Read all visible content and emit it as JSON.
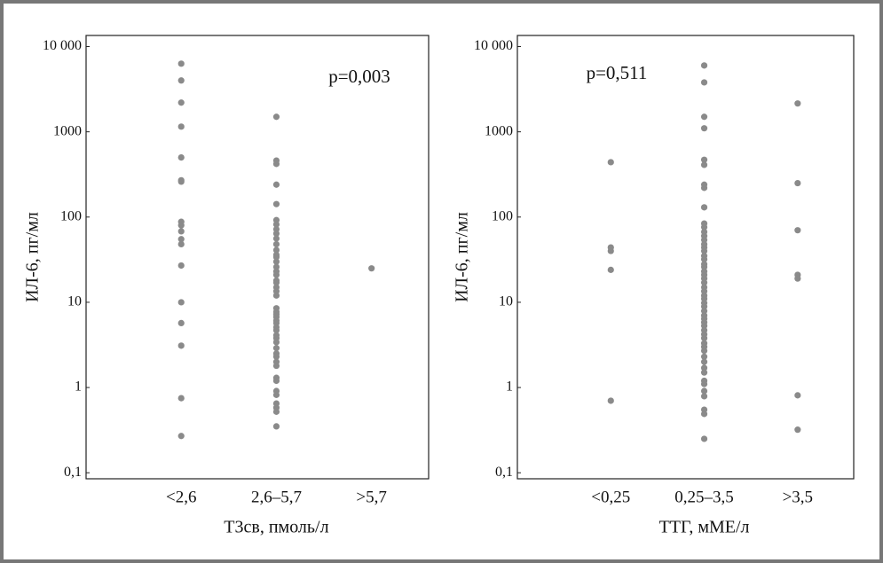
{
  "chart_data": [
    {
      "type": "scatter",
      "ylabel": "ИЛ-6, пг/мл",
      "xlabel": "Т3св, пмоль/л",
      "annotation": "p=0,003",
      "categories": [
        "<2,6",
        "2,6–5,7",
        ">5,7"
      ],
      "values": [
        [
          6300,
          4000,
          2200,
          1150,
          500,
          270,
          260,
          88,
          80,
          68,
          55,
          48,
          27,
          10,
          5.7,
          3.1,
          0.75,
          0.27
        ],
        [
          1500,
          460,
          420,
          240,
          142,
          92,
          82,
          72,
          64,
          56,
          48,
          41,
          36,
          34,
          30,
          26,
          23,
          21,
          18,
          17,
          15,
          13.5,
          12,
          8.5,
          7.7,
          7.2,
          6.7,
          6.1,
          5.7,
          5.1,
          4.7,
          4.1,
          3.8,
          3.4,
          2.9,
          2.5,
          2.3,
          2.0,
          1.8,
          1.3,
          1.2,
          0.91,
          0.82,
          0.65,
          0.58,
          0.52,
          0.35
        ],
        [
          25
        ]
      ],
      "color": "#8a8a8a",
      "log": true,
      "ylim": [
        0.085,
        13500
      ],
      "yticks": [
        {
          "value": 0.1,
          "label": "0,1"
        },
        1,
        10,
        100,
        1000,
        {
          "value": 10000,
          "label": "10 000"
        }
      ]
    },
    {
      "type": "scatter",
      "ylabel": "ИЛ-6, пг/мл",
      "xlabel": "ТТГ, мМЕ/л",
      "annotation": "p=0,511",
      "categories": [
        "<0,25",
        "0,25–3,5",
        ">3,5"
      ],
      "values": [
        [
          440,
          44,
          40,
          24,
          0.7
        ],
        [
          6000,
          3800,
          1500,
          1100,
          470,
          410,
          240,
          220,
          130,
          84,
          76,
          67,
          60,
          54,
          48,
          44,
          40,
          35,
          32,
          28,
          26,
          23,
          21,
          19,
          17,
          15,
          13.5,
          12,
          11,
          9.8,
          8.9,
          7.9,
          7.0,
          6.4,
          5.8,
          5.3,
          4.7,
          4.2,
          3.8,
          3.3,
          3.0,
          2.7,
          2.3,
          2.0,
          1.7,
          1.5,
          1.2,
          1.1,
          0.91,
          0.79,
          0.55,
          0.49,
          0.25
        ],
        [
          2150,
          250,
          70,
          21,
          19,
          0.81,
          0.32
        ]
      ],
      "color": "#8a8a8a",
      "log": true,
      "ylim": [
        0.085,
        13500
      ],
      "yticks": [
        {
          "value": 0.1,
          "label": "0,1"
        },
        1,
        10,
        100,
        1000,
        {
          "value": 10000,
          "label": "10 000"
        }
      ]
    }
  ]
}
